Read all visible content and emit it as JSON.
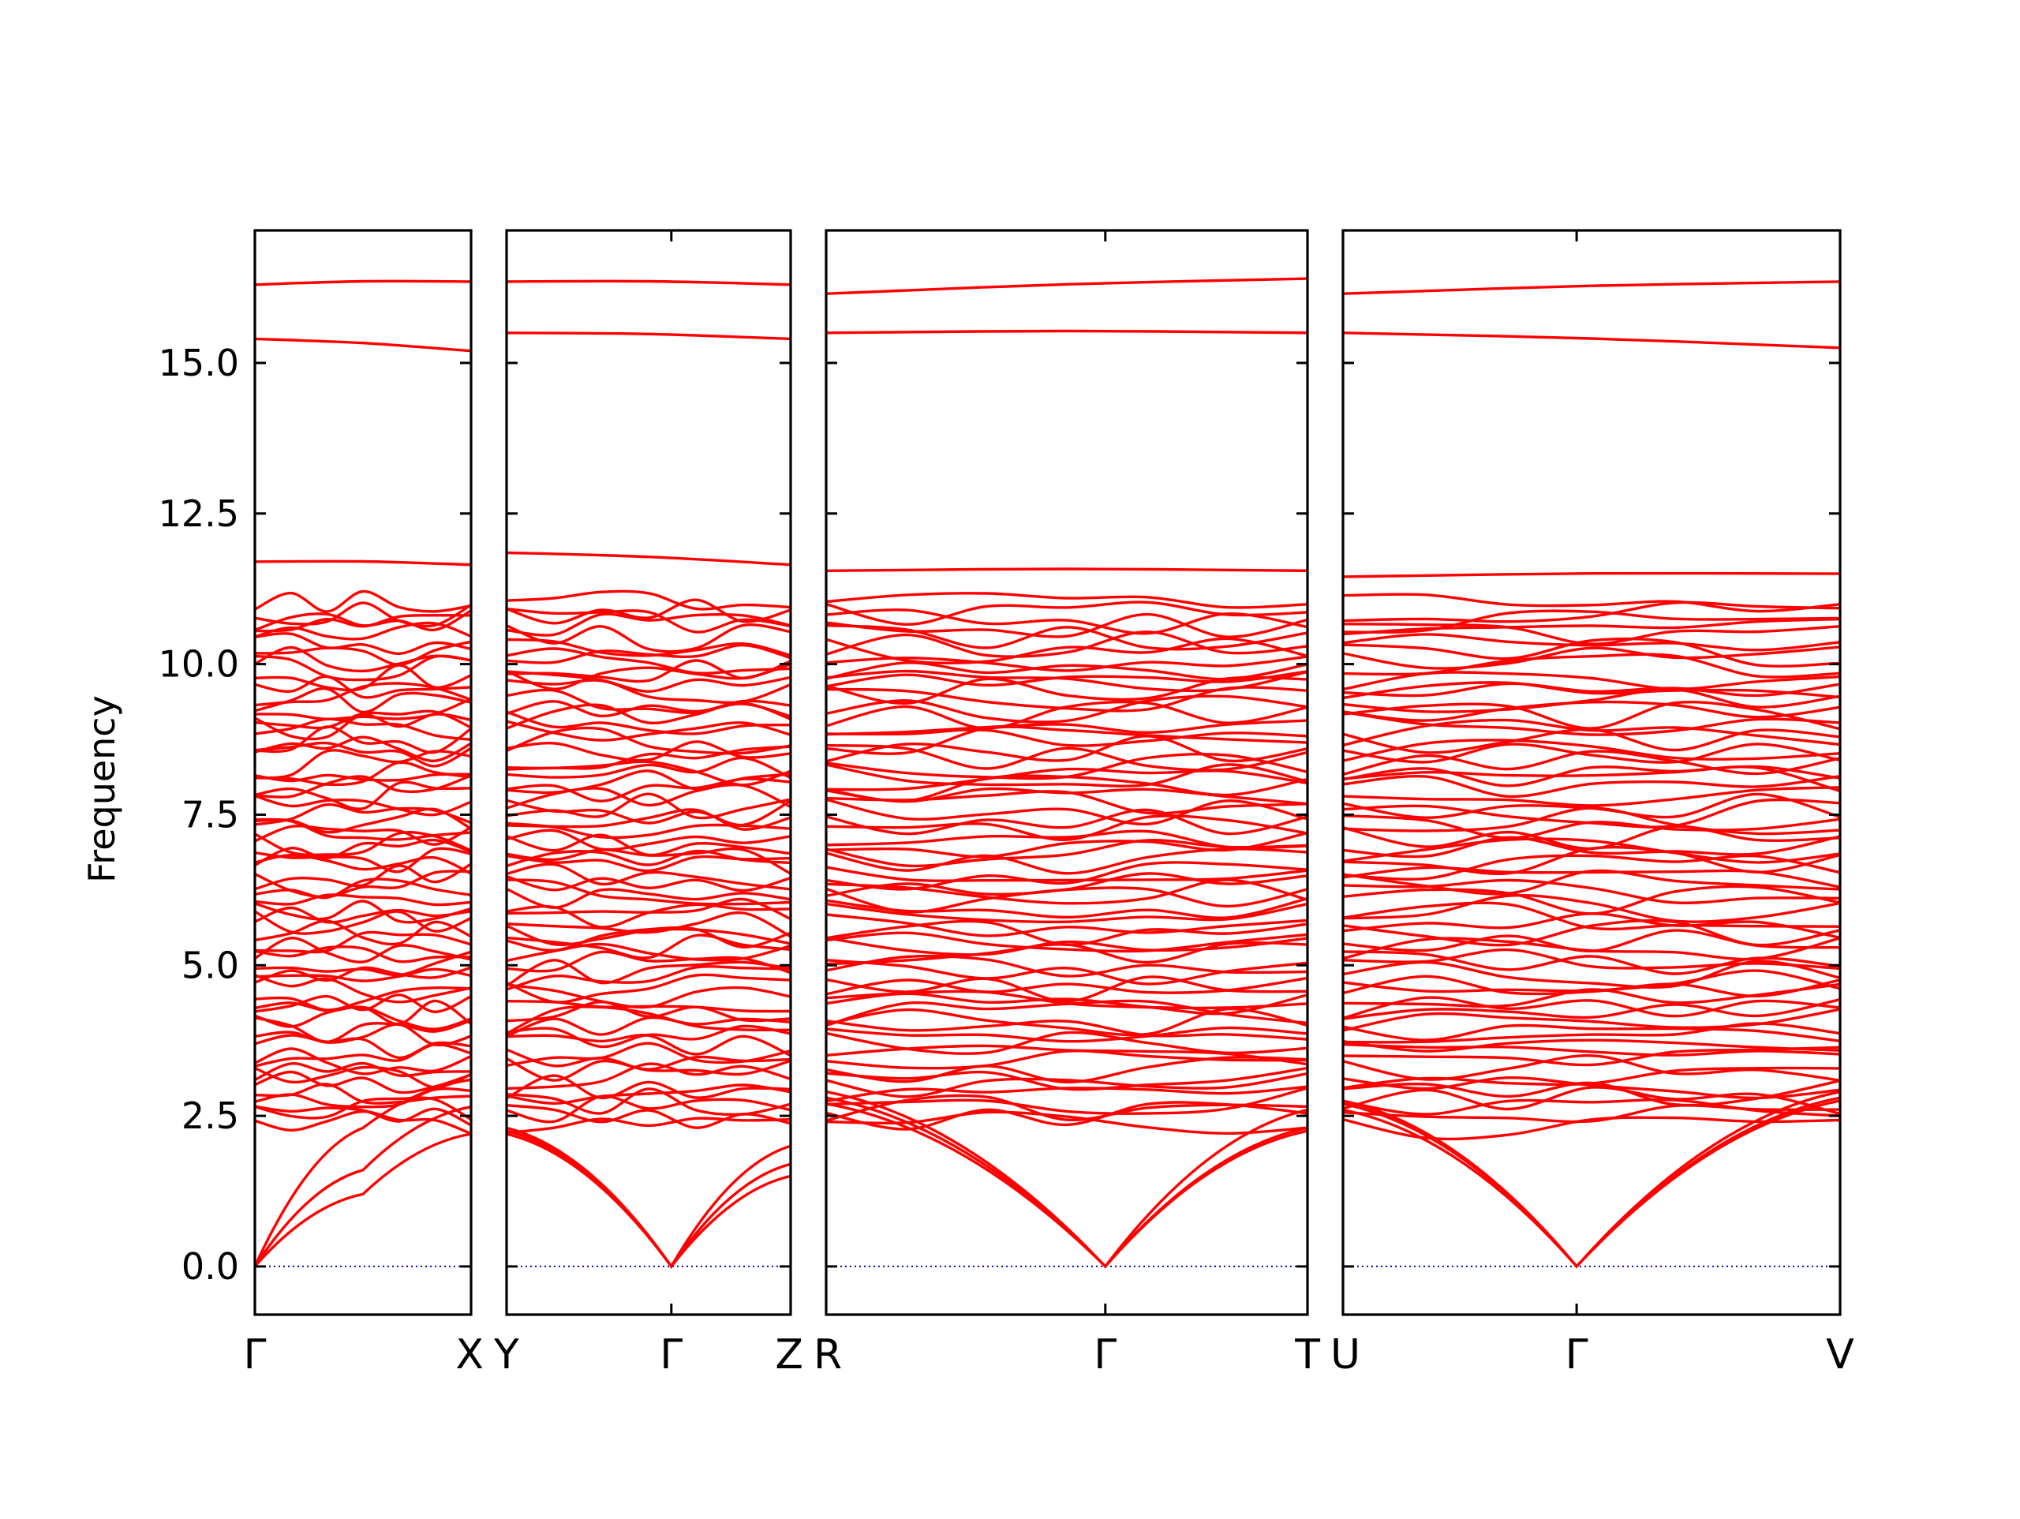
{
  "chart_data": {
    "type": "line",
    "ylabel": "Frequency",
    "ylim": [
      -0.8,
      17.2
    ],
    "yticks": [
      {
        "value": 0.0,
        "label": "0.0"
      },
      {
        "value": 2.5,
        "label": "2.5"
      },
      {
        "value": 5.0,
        "label": "5.0"
      },
      {
        "value": 7.5,
        "label": "7.5"
      },
      {
        "value": 10.0,
        "label": "10.0"
      },
      {
        "value": 12.5,
        "label": "12.5"
      },
      {
        "value": 15.0,
        "label": "15.0"
      }
    ],
    "colors": {
      "bands": "#ff0000",
      "zero_line": "#0000cc",
      "frame": "#000000"
    },
    "zero_line": {
      "style": "dotted",
      "value": 0.0
    },
    "band_count": 72,
    "panels": [
      {
        "id": "gamma-x",
        "kpoints": [
          "Γ",
          "X"
        ],
        "bands_top": [
          {
            "x": [
              0,
              1
            ],
            "y": [
              16.3,
              16.35
            ]
          },
          {
            "x": [
              0,
              1
            ],
            "y": [
              15.4,
              15.2
            ]
          },
          {
            "x": [
              0,
              1
            ],
            "y": [
              11.7,
              11.65
            ]
          }
        ],
        "acoustic": [
          {
            "x": [
              0,
              0.5,
              1
            ],
            "y": [
              0.0,
              2.3,
              3.1
            ]
          },
          {
            "x": [
              0,
              0.5,
              1
            ],
            "y": [
              0.0,
              1.6,
              2.65
            ]
          },
          {
            "x": [
              0,
              0.5,
              1
            ],
            "y": [
              0.0,
              1.2,
              2.2
            ]
          }
        ]
      },
      {
        "id": "y-gamma-z",
        "kpoints": [
          "Y",
          "Γ",
          "Z"
        ],
        "bands_top": [
          {
            "x": [
              0,
              1
            ],
            "y": [
              16.35,
              16.3
            ]
          },
          {
            "x": [
              0,
              1
            ],
            "y": [
              15.5,
              15.4
            ]
          },
          {
            "x": [
              0,
              1
            ],
            "y": [
              11.85,
              11.65
            ]
          }
        ],
        "acoustic": [
          {
            "x": [
              0,
              0.58,
              1
            ],
            "y": [
              2.3,
              0.0,
              1.7
            ]
          },
          {
            "x": [
              0,
              0.58,
              1
            ],
            "y": [
              2.2,
              0.0,
              1.5
            ]
          },
          {
            "x": [
              0,
              0.58,
              1
            ],
            "y": [
              2.25,
              0.0,
              2.0
            ]
          }
        ]
      },
      {
        "id": "r-gamma-t",
        "kpoints": [
          "R",
          "Γ",
          "T"
        ],
        "bands_top": [
          {
            "x": [
              0,
              1
            ],
            "y": [
              16.15,
              16.4
            ]
          },
          {
            "x": [
              0,
              1
            ],
            "y": [
              15.5,
              15.5
            ]
          },
          {
            "x": [
              0,
              1
            ],
            "y": [
              11.55,
              11.55
            ]
          }
        ],
        "acoustic": [
          {
            "x": [
              0,
              0.58,
              1
            ],
            "y": [
              2.9,
              0.0,
              2.3
            ]
          },
          {
            "x": [
              0,
              0.58,
              1
            ],
            "y": [
              2.7,
              0.0,
              2.25
            ]
          },
          {
            "x": [
              0,
              0.58,
              1
            ],
            "y": [
              2.8,
              0.0,
              2.6
            ]
          }
        ]
      },
      {
        "id": "u-gamma-v",
        "kpoints": [
          "U",
          "Γ",
          "V"
        ],
        "bands_top": [
          {
            "x": [
              0,
              1
            ],
            "y": [
              16.15,
              16.35
            ]
          },
          {
            "x": [
              0,
              1
            ],
            "y": [
              15.5,
              15.25
            ]
          },
          {
            "x": [
              0,
              1
            ],
            "y": [
              11.45,
              11.5
            ]
          }
        ],
        "acoustic": [
          {
            "x": [
              0,
              0.47,
              1
            ],
            "y": [
              2.75,
              0.0,
              2.9
            ]
          },
          {
            "x": [
              0,
              0.47,
              1
            ],
            "y": [
              2.6,
              0.0,
              2.75
            ]
          },
          {
            "x": [
              0,
              0.47,
              1
            ],
            "y": [
              2.7,
              0.0,
              2.8
            ]
          }
        ]
      }
    ]
  }
}
